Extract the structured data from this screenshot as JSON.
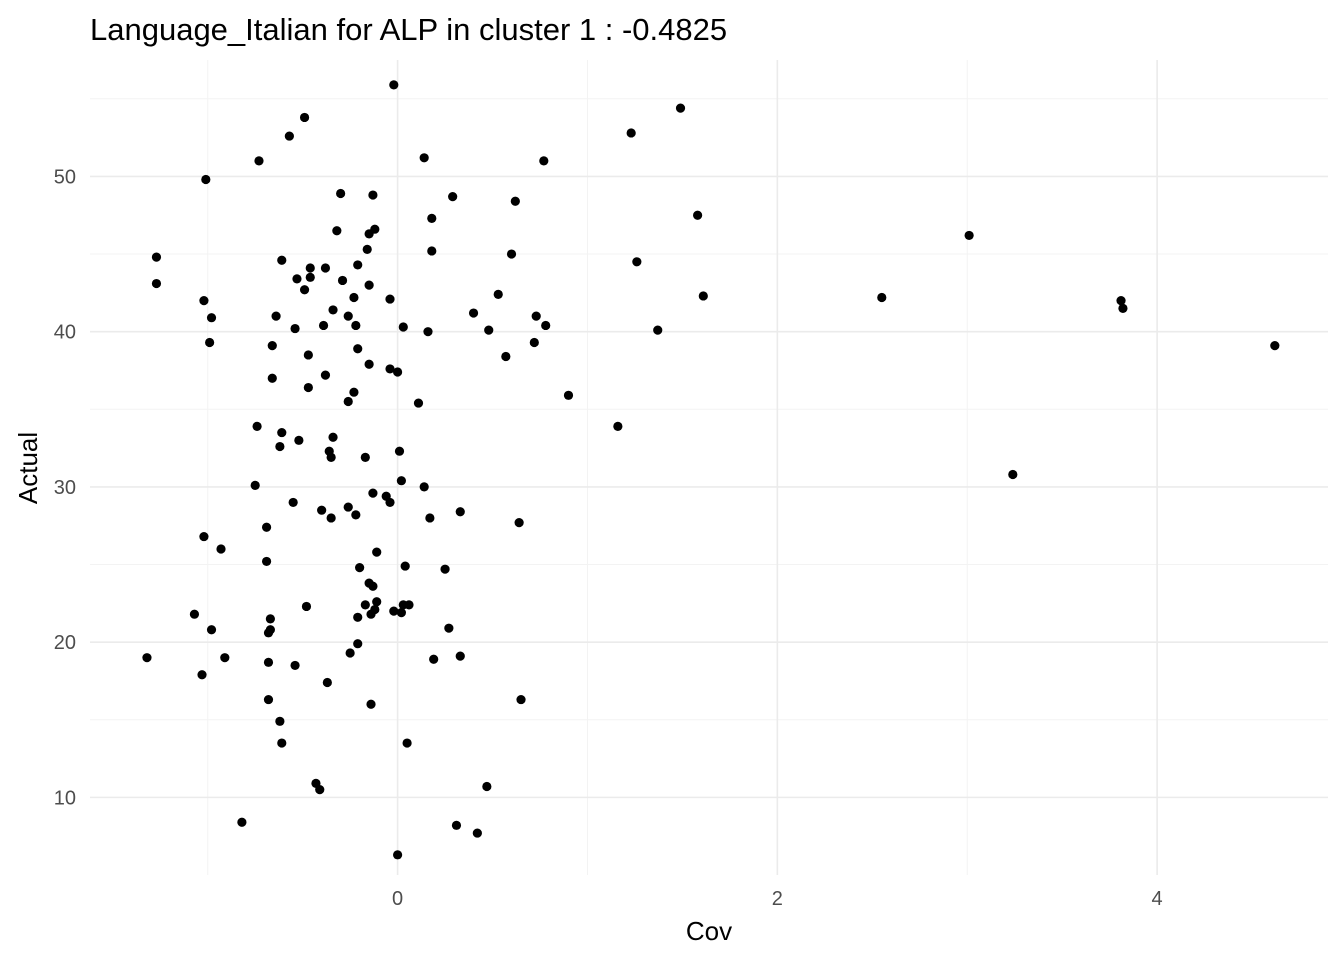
{
  "chart_data": {
    "type": "scatter",
    "title": "Language_Italian for ALP in cluster 1 : -0.4825",
    "xlabel": "Cov",
    "ylabel": "Actual",
    "xlim": [
      -1.62,
      4.9
    ],
    "ylim": [
      5.0,
      57.5
    ],
    "x_ticks": [
      0,
      2,
      4
    ],
    "y_ticks": [
      10,
      20,
      30,
      40,
      50
    ],
    "x_minor_ticks": [
      -1,
      1,
      3
    ],
    "y_minor_ticks": [
      15,
      25,
      35,
      45,
      55
    ],
    "grid": true,
    "point_color": "#000000",
    "points": [
      [
        -0.02,
        55.9
      ],
      [
        -0.49,
        53.8
      ],
      [
        -0.57,
        52.6
      ],
      [
        -0.73,
        51.0
      ],
      [
        -1.01,
        49.8
      ],
      [
        -0.3,
        48.9
      ],
      [
        -0.13,
        48.8
      ],
      [
        -0.32,
        46.5
      ],
      [
        -0.12,
        46.6
      ],
      [
        -0.15,
        46.3
      ],
      [
        -0.16,
        45.3
      ],
      [
        -1.27,
        44.8
      ],
      [
        -0.61,
        44.6
      ],
      [
        -0.38,
        44.1
      ],
      [
        -0.46,
        44.1
      ],
      [
        -0.21,
        44.3
      ],
      [
        -0.53,
        43.4
      ],
      [
        -0.46,
        43.5
      ],
      [
        -0.29,
        43.3
      ],
      [
        -0.15,
        43.0
      ],
      [
        -1.27,
        43.1
      ],
      [
        -0.49,
        42.7
      ],
      [
        -0.23,
        42.2
      ],
      [
        -1.02,
        42.0
      ],
      [
        -0.04,
        42.1
      ],
      [
        -0.98,
        40.9
      ],
      [
        -0.64,
        41.0
      ],
      [
        -0.34,
        41.4
      ],
      [
        -0.26,
        41.0
      ],
      [
        -0.39,
        40.4
      ],
      [
        -0.54,
        40.2
      ],
      [
        -0.22,
        40.4
      ],
      [
        0.03,
        40.3
      ],
      [
        -0.99,
        39.3
      ],
      [
        -0.66,
        39.1
      ],
      [
        -0.21,
        38.9
      ],
      [
        -0.47,
        38.5
      ],
      [
        -0.15,
        37.9
      ],
      [
        -0.04,
        37.6
      ],
      [
        0.0,
        37.4
      ],
      [
        -0.66,
        37.0
      ],
      [
        -0.38,
        37.2
      ],
      [
        -0.23,
        36.1
      ],
      [
        -0.47,
        36.4
      ],
      [
        -0.26,
        35.5
      ],
      [
        0.11,
        35.4
      ],
      [
        -0.74,
        33.9
      ],
      [
        -0.61,
        33.5
      ],
      [
        -0.52,
        33.0
      ],
      [
        -0.34,
        33.2
      ],
      [
        -0.62,
        32.6
      ],
      [
        -0.36,
        32.3
      ],
      [
        -0.35,
        31.9
      ],
      [
        0.01,
        32.3
      ],
      [
        -0.17,
        31.9
      ],
      [
        0.02,
        30.4
      ],
      [
        -0.75,
        30.1
      ],
      [
        0.14,
        30.0
      ],
      [
        -0.13,
        29.6
      ],
      [
        -0.06,
        29.4
      ],
      [
        -0.04,
        29.0
      ],
      [
        -0.55,
        29.0
      ],
      [
        -0.26,
        28.7
      ],
      [
        -0.4,
        28.5
      ],
      [
        -0.22,
        28.2
      ],
      [
        -0.35,
        28.0
      ],
      [
        0.17,
        28.0
      ],
      [
        -0.69,
        27.4
      ],
      [
        -1.02,
        26.8
      ],
      [
        -0.93,
        26.0
      ],
      [
        -0.11,
        25.8
      ],
      [
        -0.69,
        25.2
      ],
      [
        0.04,
        24.9
      ],
      [
        -0.2,
        24.8
      ],
      [
        0.25,
        24.7
      ],
      [
        -0.15,
        23.8
      ],
      [
        -0.13,
        23.6
      ],
      [
        -0.17,
        22.4
      ],
      [
        -0.11,
        22.6
      ],
      [
        -0.12,
        22.1
      ],
      [
        -0.48,
        22.3
      ],
      [
        0.03,
        22.4
      ],
      [
        0.06,
        22.4
      ],
      [
        -0.14,
        21.8
      ],
      [
        -0.21,
        21.6
      ],
      [
        -0.02,
        22.0
      ],
      [
        0.02,
        21.9
      ],
      [
        -1.07,
        21.8
      ],
      [
        -0.67,
        21.5
      ],
      [
        0.27,
        20.9
      ],
      [
        -0.98,
        20.8
      ],
      [
        -0.68,
        20.6
      ],
      [
        -0.67,
        20.8
      ],
      [
        -0.21,
        19.9
      ],
      [
        -0.25,
        19.3
      ],
      [
        0.33,
        19.1
      ],
      [
        0.19,
        18.9
      ],
      [
        -1.32,
        19.0
      ],
      [
        -0.91,
        19.0
      ],
      [
        -0.68,
        18.7
      ],
      [
        -0.54,
        18.5
      ],
      [
        -1.03,
        17.9
      ],
      [
        -0.37,
        17.4
      ],
      [
        -0.68,
        16.3
      ],
      [
        -0.14,
        16.0
      ],
      [
        0.65,
        16.3
      ],
      [
        -0.62,
        14.9
      ],
      [
        -0.61,
        13.5
      ],
      [
        0.05,
        13.5
      ],
      [
        -0.43,
        10.9
      ],
      [
        -0.41,
        10.5
      ],
      [
        0.47,
        10.7
      ],
      [
        -0.82,
        8.4
      ],
      [
        0.31,
        8.2
      ],
      [
        0.42,
        7.7
      ],
      [
        0.0,
        6.3
      ],
      [
        0.14,
        51.2
      ],
      [
        0.29,
        48.7
      ],
      [
        0.18,
        47.3
      ],
      [
        0.18,
        45.2
      ],
      [
        0.4,
        41.2
      ],
      [
        0.53,
        42.4
      ],
      [
        0.48,
        40.1
      ],
      [
        0.57,
        38.4
      ],
      [
        0.16,
        40.0
      ],
      [
        0.62,
        48.4
      ],
      [
        0.6,
        45.0
      ],
      [
        0.72,
        39.3
      ],
      [
        0.73,
        41.0
      ],
      [
        0.78,
        40.4
      ],
      [
        0.77,
        51.0
      ],
      [
        0.9,
        35.9
      ],
      [
        1.23,
        52.8
      ],
      [
        1.26,
        44.5
      ],
      [
        1.37,
        40.1
      ],
      [
        1.49,
        54.4
      ],
      [
        1.58,
        47.5
      ],
      [
        1.61,
        42.3
      ],
      [
        1.16,
        33.9
      ],
      [
        0.33,
        28.4
      ],
      [
        0.64,
        27.7
      ],
      [
        2.55,
        42.2
      ],
      [
        3.01,
        46.2
      ],
      [
        3.24,
        30.8
      ],
      [
        3.81,
        42.0
      ],
      [
        3.82,
        41.5
      ],
      [
        4.62,
        39.1
      ]
    ]
  }
}
